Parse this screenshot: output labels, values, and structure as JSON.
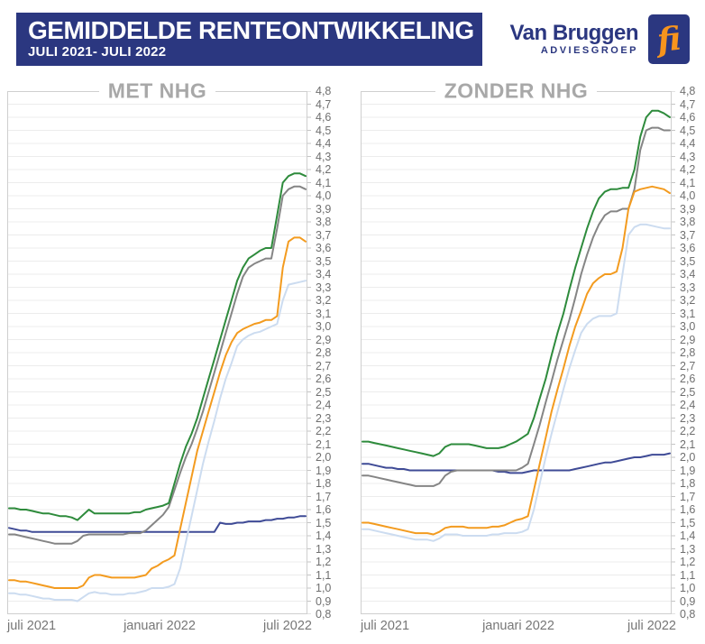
{
  "header": {
    "title": "GEMIDDELDE RENTEONTWIKKELING",
    "subtitle": "JULI 2021- JULI 2022",
    "brand": {
      "name": "Van Bruggen",
      "tagline": "ADVIESGROEP",
      "mark": "fi"
    }
  },
  "colors": {
    "banner_navy": "#2b3780",
    "logo_orange": "#f7941d",
    "grid": "#ececec",
    "chart_border": "#cfcfcf",
    "axis_tick": "#c4c4c4",
    "chart_title_gray": "#a8a8a8",
    "axis_label_gray": "#6f6f6f"
  },
  "chart_data": [
    {
      "type": "line",
      "key": "met-nhg",
      "title": "MET NHG",
      "x_labels": [
        "juli 2021",
        "januari 2022",
        "juli 2022"
      ],
      "ylim": [
        0.8,
        4.8
      ],
      "ytick_step": 0.1,
      "grid": true,
      "legend": "none",
      "series": [
        {
          "name": "navy-line",
          "color": "#3f4b96",
          "values": [
            1.46,
            1.45,
            1.44,
            1.44,
            1.43,
            1.43,
            1.43,
            1.43,
            1.43,
            1.43,
            1.43,
            1.43,
            1.43,
            1.43,
            1.43,
            1.43,
            1.43,
            1.43,
            1.43,
            1.43,
            1.43,
            1.43,
            1.43,
            1.43,
            1.43,
            1.43,
            1.43,
            1.43,
            1.43,
            1.43,
            1.43,
            1.43,
            1.43,
            1.43,
            1.43,
            1.43,
            1.43,
            1.5,
            1.49,
            1.49,
            1.5,
            1.5,
            1.51,
            1.51,
            1.51,
            1.52,
            1.52,
            1.53,
            1.53,
            1.54,
            1.54,
            1.55,
            1.55
          ]
        },
        {
          "name": "lightblue-line",
          "color": "#ccdcf0",
          "values": [
            0.96,
            0.96,
            0.95,
            0.95,
            0.94,
            0.93,
            0.92,
            0.92,
            0.91,
            0.91,
            0.91,
            0.91,
            0.9,
            0.93,
            0.96,
            0.97,
            0.96,
            0.96,
            0.95,
            0.95,
            0.95,
            0.96,
            0.96,
            0.97,
            0.98,
            1.0,
            1.0,
            1.0,
            1.01,
            1.03,
            1.15,
            1.35,
            1.55,
            1.75,
            1.95,
            2.12,
            2.28,
            2.45,
            2.6,
            2.72,
            2.85,
            2.9,
            2.93,
            2.95,
            2.96,
            2.98,
            3.0,
            3.02,
            3.2,
            3.32,
            3.33,
            3.34,
            3.35
          ]
        },
        {
          "name": "gray-line",
          "color": "#858585",
          "values": [
            1.41,
            1.41,
            1.4,
            1.39,
            1.38,
            1.37,
            1.36,
            1.35,
            1.34,
            1.34,
            1.34,
            1.34,
            1.36,
            1.4,
            1.41,
            1.41,
            1.41,
            1.41,
            1.41,
            1.41,
            1.41,
            1.42,
            1.42,
            1.42,
            1.44,
            1.48,
            1.52,
            1.56,
            1.62,
            1.75,
            1.88,
            2.0,
            2.1,
            2.22,
            2.35,
            2.5,
            2.65,
            2.8,
            2.95,
            3.1,
            3.25,
            3.38,
            3.45,
            3.48,
            3.5,
            3.52,
            3.52,
            3.75,
            4.0,
            4.05,
            4.07,
            4.07,
            4.05
          ]
        },
        {
          "name": "orange-line",
          "color": "#f39b1f",
          "values": [
            1.06,
            1.06,
            1.05,
            1.05,
            1.04,
            1.03,
            1.02,
            1.01,
            1.0,
            1.0,
            1.0,
            1.0,
            1.0,
            1.02,
            1.08,
            1.1,
            1.1,
            1.09,
            1.08,
            1.08,
            1.08,
            1.08,
            1.08,
            1.09,
            1.1,
            1.15,
            1.17,
            1.2,
            1.22,
            1.25,
            1.45,
            1.65,
            1.85,
            2.05,
            2.2,
            2.35,
            2.5,
            2.65,
            2.78,
            2.88,
            2.95,
            2.98,
            3.0,
            3.02,
            3.03,
            3.05,
            3.05,
            3.08,
            3.45,
            3.65,
            3.68,
            3.68,
            3.65
          ]
        },
        {
          "name": "green-line",
          "color": "#2e8b3c",
          "values": [
            1.61,
            1.61,
            1.6,
            1.6,
            1.59,
            1.58,
            1.57,
            1.57,
            1.56,
            1.55,
            1.55,
            1.54,
            1.52,
            1.56,
            1.6,
            1.57,
            1.57,
            1.57,
            1.57,
            1.57,
            1.57,
            1.57,
            1.58,
            1.58,
            1.6,
            1.61,
            1.62,
            1.63,
            1.65,
            1.8,
            1.95,
            2.08,
            2.18,
            2.3,
            2.45,
            2.6,
            2.75,
            2.9,
            3.05,
            3.2,
            3.35,
            3.45,
            3.52,
            3.55,
            3.58,
            3.6,
            3.6,
            3.85,
            4.1,
            4.15,
            4.17,
            4.17,
            4.15
          ]
        }
      ]
    },
    {
      "type": "line",
      "key": "zonder-nhg",
      "title": "ZONDER NHG",
      "x_labels": [
        "juli 2021",
        "januari 2022",
        "juli 2022"
      ],
      "ylim": [
        0.8,
        4.8
      ],
      "ytick_step": 0.1,
      "grid": true,
      "legend": "none",
      "series": [
        {
          "name": "navy-line",
          "color": "#3f4b96",
          "values": [
            1.95,
            1.95,
            1.94,
            1.93,
            1.92,
            1.92,
            1.91,
            1.91,
            1.9,
            1.9,
            1.9,
            1.9,
            1.9,
            1.9,
            1.9,
            1.9,
            1.9,
            1.9,
            1.9,
            1.9,
            1.9,
            1.9,
            1.9,
            1.89,
            1.89,
            1.88,
            1.88,
            1.88,
            1.89,
            1.9,
            1.9,
            1.9,
            1.9,
            1.9,
            1.9,
            1.9,
            1.91,
            1.92,
            1.93,
            1.94,
            1.95,
            1.96,
            1.96,
            1.97,
            1.98,
            1.99,
            2.0,
            2.0,
            2.01,
            2.02,
            2.02,
            2.02,
            2.03
          ]
        },
        {
          "name": "lightblue-line",
          "color": "#ccdcf0",
          "values": [
            1.45,
            1.45,
            1.44,
            1.43,
            1.42,
            1.41,
            1.4,
            1.39,
            1.38,
            1.37,
            1.37,
            1.37,
            1.36,
            1.38,
            1.41,
            1.41,
            1.41,
            1.4,
            1.4,
            1.4,
            1.4,
            1.4,
            1.41,
            1.41,
            1.42,
            1.42,
            1.42,
            1.43,
            1.45,
            1.6,
            1.8,
            2.0,
            2.18,
            2.35,
            2.52,
            2.68,
            2.82,
            2.95,
            3.02,
            3.06,
            3.08,
            3.08,
            3.08,
            3.1,
            3.4,
            3.7,
            3.76,
            3.78,
            3.78,
            3.77,
            3.76,
            3.75,
            3.75
          ]
        },
        {
          "name": "gray-line",
          "color": "#858585",
          "values": [
            1.86,
            1.86,
            1.85,
            1.84,
            1.83,
            1.82,
            1.81,
            1.8,
            1.79,
            1.78,
            1.78,
            1.78,
            1.78,
            1.8,
            1.86,
            1.89,
            1.9,
            1.9,
            1.9,
            1.9,
            1.9,
            1.9,
            1.9,
            1.9,
            1.9,
            1.9,
            1.9,
            1.92,
            1.95,
            2.1,
            2.25,
            2.42,
            2.58,
            2.75,
            2.9,
            3.05,
            3.22,
            3.4,
            3.55,
            3.68,
            3.78,
            3.85,
            3.88,
            3.88,
            3.9,
            3.9,
            4.05,
            4.35,
            4.5,
            4.52,
            4.52,
            4.5,
            4.5
          ]
        },
        {
          "name": "orange-line",
          "color": "#f39b1f",
          "values": [
            1.5,
            1.5,
            1.49,
            1.48,
            1.47,
            1.46,
            1.45,
            1.44,
            1.43,
            1.42,
            1.42,
            1.42,
            1.41,
            1.43,
            1.46,
            1.47,
            1.47,
            1.47,
            1.46,
            1.46,
            1.46,
            1.46,
            1.47,
            1.47,
            1.48,
            1.5,
            1.52,
            1.53,
            1.55,
            1.75,
            1.95,
            2.15,
            2.35,
            2.52,
            2.68,
            2.85,
            3.0,
            3.12,
            3.25,
            3.33,
            3.37,
            3.4,
            3.4,
            3.42,
            3.6,
            3.9,
            4.03,
            4.05,
            4.06,
            4.07,
            4.06,
            4.05,
            4.02
          ]
        },
        {
          "name": "green-line",
          "color": "#2e8b3c",
          "values": [
            2.12,
            2.12,
            2.11,
            2.1,
            2.09,
            2.08,
            2.07,
            2.06,
            2.05,
            2.04,
            2.03,
            2.02,
            2.01,
            2.03,
            2.08,
            2.1,
            2.1,
            2.1,
            2.1,
            2.09,
            2.08,
            2.07,
            2.07,
            2.07,
            2.08,
            2.1,
            2.12,
            2.15,
            2.18,
            2.3,
            2.45,
            2.6,
            2.78,
            2.95,
            3.1,
            3.28,
            3.45,
            3.6,
            3.75,
            3.88,
            3.98,
            4.03,
            4.05,
            4.05,
            4.06,
            4.06,
            4.2,
            4.45,
            4.6,
            4.65,
            4.65,
            4.63,
            4.6
          ]
        }
      ]
    }
  ]
}
